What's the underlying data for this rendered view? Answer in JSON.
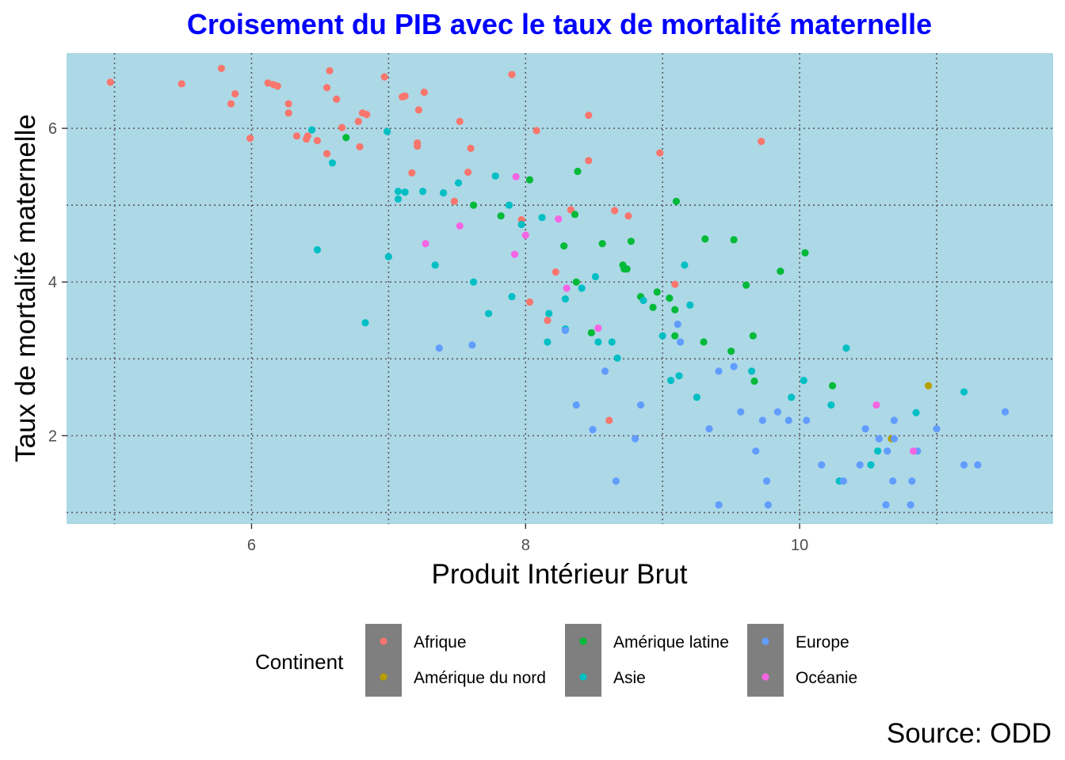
{
  "chart_data": {
    "type": "scatter",
    "title": "Croisement du PIB avec le taux de mortalité maternelle",
    "xlabel": "Produit Intérieur Brut",
    "ylabel": "Taux de mortalité maternelle",
    "caption": "Source: ODD",
    "xlim": [
      4.65,
      11.85
    ],
    "ylim": [
      0.85,
      6.98
    ],
    "x_ticks": [
      6,
      8,
      10
    ],
    "y_ticks": [
      2,
      4,
      6
    ],
    "x_minor_grid": [
      5,
      7,
      9,
      11
    ],
    "y_minor_grid": [
      1,
      3,
      5
    ],
    "grid": true,
    "panel_background": "#add8e6",
    "title_color": "#0000ff",
    "legend": {
      "title": "Continent",
      "position": "bottom",
      "entries": [
        "Afrique",
        "Amérique du nord",
        "Amérique latine",
        "Asie",
        "Europe",
        "Océanie"
      ]
    },
    "series": [
      {
        "name": "Afrique",
        "color": "#f8766d",
        "points": [
          [
            4.97,
            6.6
          ],
          [
            5.49,
            6.58
          ],
          [
            5.78,
            6.78
          ],
          [
            5.88,
            6.45
          ],
          [
            5.85,
            6.32
          ],
          [
            5.99,
            5.87
          ],
          [
            6.12,
            6.59
          ],
          [
            6.16,
            6.57
          ],
          [
            6.19,
            6.55
          ],
          [
            6.27,
            6.32
          ],
          [
            6.27,
            6.2
          ],
          [
            6.33,
            5.9
          ],
          [
            6.4,
            5.86
          ],
          [
            6.41,
            5.9
          ],
          [
            6.48,
            5.84
          ],
          [
            6.55,
            6.53
          ],
          [
            6.57,
            6.75
          ],
          [
            6.62,
            6.38
          ],
          [
            6.55,
            5.67
          ],
          [
            6.66,
            6.01
          ],
          [
            6.78,
            6.09
          ],
          [
            6.79,
            5.76
          ],
          [
            6.81,
            6.2
          ],
          [
            6.84,
            6.18
          ],
          [
            6.97,
            6.67
          ],
          [
            7.1,
            6.41
          ],
          [
            7.12,
            6.42
          ],
          [
            7.17,
            5.42
          ],
          [
            7.21,
            5.77
          ],
          [
            7.21,
            5.81
          ],
          [
            7.22,
            6.24
          ],
          [
            7.26,
            6.47
          ],
          [
            7.48,
            5.05
          ],
          [
            7.52,
            6.09
          ],
          [
            7.58,
            5.43
          ],
          [
            7.6,
            5.74
          ],
          [
            7.9,
            6.7
          ],
          [
            7.97,
            4.81
          ],
          [
            8.03,
            3.74
          ],
          [
            8.08,
            5.97
          ],
          [
            8.16,
            3.5
          ],
          [
            8.22,
            4.13
          ],
          [
            8.33,
            4.94
          ],
          [
            8.46,
            6.17
          ],
          [
            8.46,
            5.58
          ],
          [
            8.61,
            2.2
          ],
          [
            8.65,
            4.93
          ],
          [
            8.75,
            4.86
          ],
          [
            8.98,
            5.68
          ],
          [
            9.09,
            3.97
          ],
          [
            9.72,
            5.83
          ]
        ]
      },
      {
        "name": "Amérique du nord",
        "color": "#b79f00",
        "points": [
          [
            10.67,
            1.96
          ],
          [
            10.94,
            2.65
          ]
        ]
      },
      {
        "name": "Amérique latine",
        "color": "#00ba38",
        "points": [
          [
            6.69,
            5.88
          ],
          [
            7.62,
            5.0
          ],
          [
            7.82,
            4.86
          ],
          [
            8.03,
            5.33
          ],
          [
            8.28,
            4.47
          ],
          [
            8.36,
            4.88
          ],
          [
            8.37,
            4.0
          ],
          [
            8.38,
            5.44
          ],
          [
            8.48,
            3.34
          ],
          [
            8.56,
            4.5
          ],
          [
            8.71,
            4.22
          ],
          [
            8.72,
            4.17
          ],
          [
            8.74,
            4.17
          ],
          [
            8.77,
            4.53
          ],
          [
            8.84,
            3.81
          ],
          [
            8.93,
            3.67
          ],
          [
            8.96,
            3.87
          ],
          [
            9.05,
            3.79
          ],
          [
            9.09,
            3.64
          ],
          [
            9.09,
            3.3
          ],
          [
            9.1,
            5.05
          ],
          [
            9.3,
            3.22
          ],
          [
            9.31,
            4.56
          ],
          [
            9.5,
            3.1
          ],
          [
            9.52,
            4.55
          ],
          [
            9.61,
            3.96
          ],
          [
            9.66,
            3.3
          ],
          [
            9.67,
            2.71
          ],
          [
            9.86,
            4.14
          ],
          [
            10.04,
            4.38
          ],
          [
            10.24,
            2.65
          ]
        ]
      },
      {
        "name": "Asie",
        "color": "#00bfc4",
        "points": [
          [
            6.44,
            5.98
          ],
          [
            6.48,
            4.42
          ],
          [
            6.59,
            5.55
          ],
          [
            6.83,
            3.47
          ],
          [
            6.99,
            5.96
          ],
          [
            7.0,
            4.33
          ],
          [
            7.07,
            5.08
          ],
          [
            7.07,
            5.18
          ],
          [
            7.12,
            5.17
          ],
          [
            7.25,
            5.18
          ],
          [
            7.34,
            4.22
          ],
          [
            7.4,
            5.16
          ],
          [
            7.51,
            5.29
          ],
          [
            7.62,
            4.0
          ],
          [
            7.73,
            3.59
          ],
          [
            7.78,
            5.38
          ],
          [
            7.88,
            5.0
          ],
          [
            7.9,
            3.81
          ],
          [
            7.97,
            4.75
          ],
          [
            8.12,
            4.84
          ],
          [
            8.16,
            3.22
          ],
          [
            8.17,
            3.59
          ],
          [
            8.29,
            3.78
          ],
          [
            8.29,
            3.39
          ],
          [
            8.41,
            3.92
          ],
          [
            8.51,
            4.07
          ],
          [
            8.53,
            3.22
          ],
          [
            8.63,
            3.22
          ],
          [
            8.67,
            3.01
          ],
          [
            8.86,
            3.76
          ],
          [
            9.0,
            3.3
          ],
          [
            9.06,
            2.72
          ],
          [
            9.12,
            2.78
          ],
          [
            9.16,
            4.22
          ],
          [
            9.2,
            3.7
          ],
          [
            9.25,
            2.5
          ],
          [
            9.65,
            2.84
          ],
          [
            9.94,
            2.5
          ],
          [
            10.03,
            2.72
          ],
          [
            10.23,
            2.4
          ],
          [
            10.29,
            1.41
          ],
          [
            10.34,
            3.14
          ],
          [
            10.52,
            1.62
          ],
          [
            10.57,
            1.8
          ],
          [
            10.85,
            2.3
          ],
          [
            11.2,
            2.57
          ]
        ]
      },
      {
        "name": "Europe",
        "color": "#619cff",
        "points": [
          [
            7.37,
            3.14
          ],
          [
            7.61,
            3.18
          ],
          [
            8.29,
            3.37
          ],
          [
            8.37,
            2.4
          ],
          [
            8.49,
            2.08
          ],
          [
            8.58,
            2.84
          ],
          [
            8.66,
            1.41
          ],
          [
            8.8,
            1.96
          ],
          [
            8.84,
            2.4
          ],
          [
            9.11,
            3.45
          ],
          [
            9.13,
            3.22
          ],
          [
            9.34,
            2.09
          ],
          [
            9.41,
            1.1
          ],
          [
            9.41,
            2.84
          ],
          [
            9.52,
            2.9
          ],
          [
            9.57,
            2.31
          ],
          [
            9.68,
            1.8
          ],
          [
            9.73,
            2.2
          ],
          [
            9.76,
            1.41
          ],
          [
            9.77,
            1.1
          ],
          [
            9.84,
            2.31
          ],
          [
            9.92,
            2.2
          ],
          [
            10.05,
            2.2
          ],
          [
            10.16,
            1.62
          ],
          [
            10.32,
            1.41
          ],
          [
            10.44,
            1.62
          ],
          [
            10.48,
            2.09
          ],
          [
            10.58,
            1.96
          ],
          [
            10.63,
            1.1
          ],
          [
            10.64,
            1.8
          ],
          [
            10.68,
            1.41
          ],
          [
            10.69,
            1.96
          ],
          [
            10.69,
            2.2
          ],
          [
            10.81,
            1.1
          ],
          [
            10.82,
            1.41
          ],
          [
            10.86,
            1.8
          ],
          [
            11.0,
            2.09
          ],
          [
            11.2,
            1.62
          ],
          [
            11.3,
            1.62
          ],
          [
            11.5,
            2.31
          ]
        ]
      },
      {
        "name": "Océanie",
        "color": "#f564e3",
        "points": [
          [
            7.27,
            4.5
          ],
          [
            7.52,
            4.73
          ],
          [
            7.92,
            4.36
          ],
          [
            7.93,
            5.37
          ],
          [
            8.0,
            4.61
          ],
          [
            8.24,
            4.82
          ],
          [
            8.3,
            3.92
          ],
          [
            8.53,
            3.4
          ],
          [
            10.56,
            2.4
          ],
          [
            10.83,
            1.8
          ]
        ]
      }
    ]
  }
}
